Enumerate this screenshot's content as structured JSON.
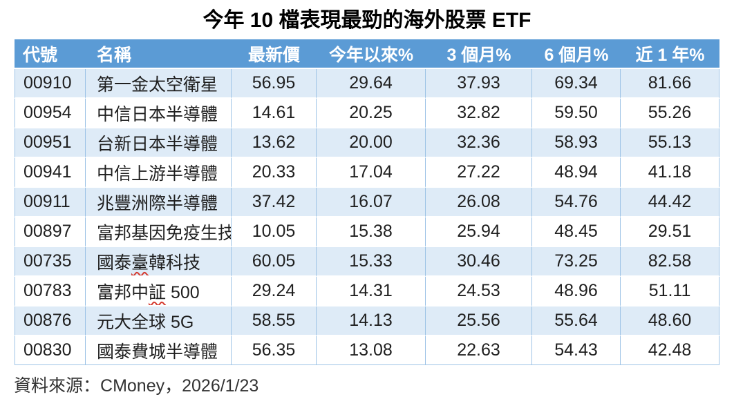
{
  "title": "今年 10 檔表現最勁的海外股票 ETF",
  "footer": {
    "label": "資料來源：",
    "value": "CMoney，2026/1/23"
  },
  "colors": {
    "header_bg": "#5B9BD5",
    "header_text": "#FFFFFF",
    "band_bg": "#DEEBF7",
    "row_bg": "#FFFFFF",
    "grid_border": "#9DC3E6",
    "text": "#1F1F1F",
    "squiggle": "#D43A2F"
  },
  "chart_data": {
    "type": "table",
    "title": "今年 10 檔表現最勁的海外股票 ETF",
    "columns": [
      "代號",
      "名稱",
      "最新價",
      "今年以來%",
      "3 個月%",
      "6 個月%",
      "近 1 年%"
    ],
    "rows": [
      {
        "code": "00910",
        "name": "第一金太空衛星",
        "squiggle": "",
        "price": "56.95",
        "ytd": "29.64",
        "m3": "37.93",
        "m6": "69.34",
        "y1": "81.66"
      },
      {
        "code": "00954",
        "name": "中信日本半導體",
        "squiggle": "",
        "price": "14.61",
        "ytd": "20.25",
        "m3": "32.82",
        "m6": "59.50",
        "y1": "55.26"
      },
      {
        "code": "00951",
        "name": "台新日本半導體",
        "squiggle": "",
        "price": "13.62",
        "ytd": "20.00",
        "m3": "32.36",
        "m6": "58.93",
        "y1": "55.13"
      },
      {
        "code": "00941",
        "name": "中信上游半導體",
        "squiggle": "",
        "price": "20.33",
        "ytd": "17.04",
        "m3": "27.22",
        "m6": "48.94",
        "y1": "41.18"
      },
      {
        "code": "00911",
        "name": "兆豐洲際半導體",
        "squiggle": "",
        "price": "37.42",
        "ytd": "16.07",
        "m3": "26.08",
        "m6": "54.76",
        "y1": "44.42"
      },
      {
        "code": "00897",
        "name": "富邦基因免疫生技",
        "squiggle": "",
        "price": "10.05",
        "ytd": "15.38",
        "m3": "25.94",
        "m6": "48.45",
        "y1": "29.51"
      },
      {
        "code": "00735",
        "name": "國泰臺韓科技",
        "squiggle": "臺",
        "price": "60.05",
        "ytd": "15.33",
        "m3": "30.46",
        "m6": "73.25",
        "y1": "82.58"
      },
      {
        "code": "00783",
        "name": "富邦中証 500",
        "squiggle": "証",
        "price": "29.24",
        "ytd": "14.31",
        "m3": "24.53",
        "m6": "48.96",
        "y1": "51.11"
      },
      {
        "code": "00876",
        "name": "元大全球 5G",
        "squiggle": "",
        "price": "58.55",
        "ytd": "14.13",
        "m3": "25.56",
        "m6": "55.64",
        "y1": "48.60"
      },
      {
        "code": "00830",
        "name": "國泰費城半導體",
        "squiggle": "",
        "price": "56.35",
        "ytd": "13.08",
        "m3": "22.63",
        "m6": "54.43",
        "y1": "42.48"
      }
    ]
  }
}
